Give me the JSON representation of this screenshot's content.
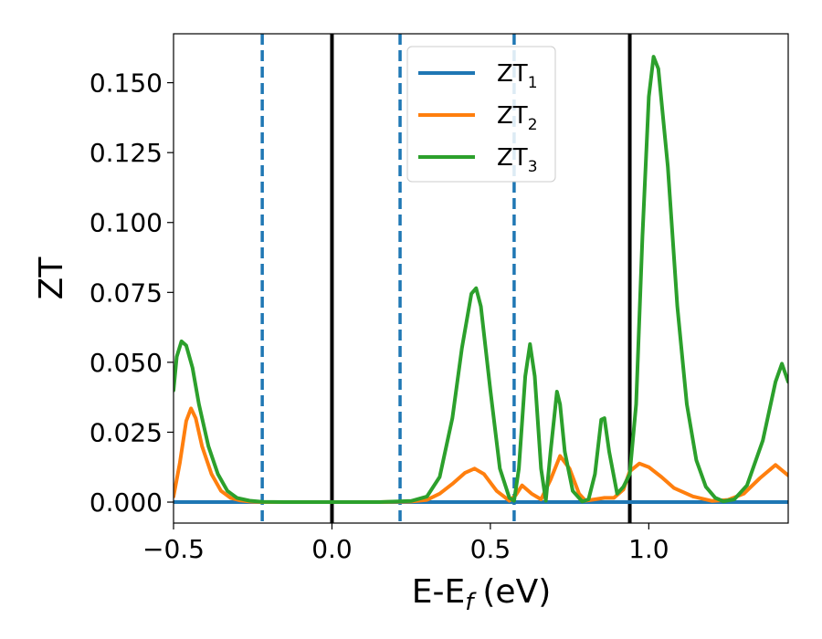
{
  "chart_data": {
    "type": "line",
    "xlabel": {
      "main": "E-E",
      "sub": "f",
      "unit": "(eV)"
    },
    "ylabel": "ZT",
    "xlim": [
      -0.5,
      1.44
    ],
    "ylim": [
      -0.0075,
      0.1675
    ],
    "xticks": [
      {
        "value": -0.5,
        "label": "−0.5"
      },
      {
        "value": 0.0,
        "label": "0.0"
      },
      {
        "value": 0.5,
        "label": "0.5"
      },
      {
        "value": 1.0,
        "label": "1.0"
      }
    ],
    "yticks": [
      {
        "value": 0.0,
        "label": "0.000"
      },
      {
        "value": 0.025,
        "label": "0.025"
      },
      {
        "value": 0.05,
        "label": "0.050"
      },
      {
        "value": 0.075,
        "label": "0.075"
      },
      {
        "value": 0.1,
        "label": "0.100"
      },
      {
        "value": 0.125,
        "label": "0.125"
      },
      {
        "value": 0.15,
        "label": "0.150"
      }
    ],
    "grid": false,
    "legend_position": "top-center",
    "vlines": [
      {
        "x": -0.22,
        "style": "dashed",
        "color": "#1f77b4"
      },
      {
        "x": 0.0,
        "style": "solid",
        "color": "#000000"
      },
      {
        "x": 0.215,
        "style": "dashed",
        "color": "#1f77b4"
      },
      {
        "x": 0.575,
        "style": "dashed",
        "color": "#1f77b4"
      },
      {
        "x": 0.94,
        "style": "solid",
        "color": "#000000"
      }
    ],
    "series": [
      {
        "name": {
          "base": "ZT",
          "sub": "1"
        },
        "color": "#1f77b4",
        "x": [
          -0.5,
          1.44
        ],
        "y": [
          0.0,
          0.0
        ]
      },
      {
        "name": {
          "base": "ZT",
          "sub": "2"
        },
        "color": "#ff7f0e",
        "x": [
          -0.5,
          -0.48,
          -0.46,
          -0.445,
          -0.43,
          -0.41,
          -0.38,
          -0.35,
          -0.32,
          -0.29,
          -0.26,
          -0.22,
          -0.15,
          -0.05,
          0.05,
          0.15,
          0.25,
          0.3,
          0.34,
          0.38,
          0.42,
          0.45,
          0.48,
          0.52,
          0.56,
          0.58,
          0.6,
          0.63,
          0.66,
          0.69,
          0.72,
          0.75,
          0.78,
          0.8,
          0.83,
          0.86,
          0.89,
          0.92,
          0.94,
          0.97,
          1.0,
          1.04,
          1.08,
          1.14,
          1.2,
          1.25,
          1.3,
          1.35,
          1.4,
          1.44
        ],
        "y": [
          0.002,
          0.014,
          0.029,
          0.0335,
          0.03,
          0.02,
          0.01,
          0.004,
          0.0015,
          0.0006,
          0.0002,
          0.0,
          0.0,
          0.0,
          0.0,
          0.0,
          0.0002,
          0.0008,
          0.003,
          0.0065,
          0.0105,
          0.012,
          0.01,
          0.004,
          0.0005,
          0.0025,
          0.006,
          0.003,
          0.001,
          0.008,
          0.0165,
          0.012,
          0.003,
          0.0005,
          0.001,
          0.0015,
          0.0015,
          0.0045,
          0.011,
          0.0138,
          0.0125,
          0.009,
          0.005,
          0.002,
          0.0004,
          0.0008,
          0.003,
          0.0085,
          0.0133,
          0.0095
        ]
      },
      {
        "name": {
          "base": "ZT",
          "sub": "3"
        },
        "color": "#2ca02c",
        "x": [
          -0.5,
          -0.49,
          -0.475,
          -0.46,
          -0.44,
          -0.42,
          -0.39,
          -0.36,
          -0.33,
          -0.3,
          -0.26,
          -0.22,
          -0.15,
          -0.05,
          0.05,
          0.15,
          0.25,
          0.3,
          0.34,
          0.38,
          0.41,
          0.44,
          0.455,
          0.47,
          0.5,
          0.53,
          0.56,
          0.575,
          0.59,
          0.61,
          0.625,
          0.64,
          0.66,
          0.675,
          0.69,
          0.71,
          0.72,
          0.735,
          0.76,
          0.79,
          0.81,
          0.83,
          0.85,
          0.86,
          0.875,
          0.9,
          0.92,
          0.94,
          0.96,
          0.98,
          1.0,
          1.015,
          1.03,
          1.06,
          1.09,
          1.12,
          1.15,
          1.18,
          1.21,
          1.235,
          1.27,
          1.31,
          1.36,
          1.4,
          1.42,
          1.44
        ],
        "y": [
          0.04,
          0.052,
          0.0575,
          0.056,
          0.048,
          0.035,
          0.02,
          0.01,
          0.004,
          0.0015,
          0.0005,
          0.0001,
          0.0,
          0.0,
          0.0,
          0.0,
          0.0004,
          0.002,
          0.009,
          0.03,
          0.055,
          0.0745,
          0.0765,
          0.07,
          0.04,
          0.012,
          0.0015,
          0.0005,
          0.012,
          0.045,
          0.0565,
          0.045,
          0.012,
          0.0005,
          0.018,
          0.0395,
          0.035,
          0.018,
          0.004,
          0.0002,
          0.001,
          0.01,
          0.0295,
          0.03,
          0.018,
          0.003,
          0.0055,
          0.01,
          0.035,
          0.095,
          0.145,
          0.1593,
          0.155,
          0.12,
          0.07,
          0.035,
          0.015,
          0.0055,
          0.0015,
          0.0003,
          0.001,
          0.006,
          0.022,
          0.043,
          0.0495,
          0.043
        ]
      }
    ]
  }
}
